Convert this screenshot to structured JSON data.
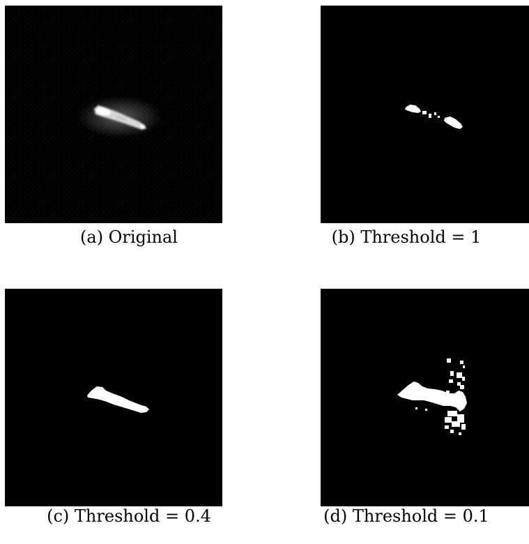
{
  "figure": {
    "panels": [
      {
        "id": "a",
        "caption": "(a) Original"
      },
      {
        "id": "b",
        "caption": "(b) Threshold = 1"
      },
      {
        "id": "c",
        "caption": "(c) Threshold = 0.4"
      },
      {
        "id": "d",
        "caption": "(d) Threshold = 0.1"
      }
    ]
  },
  "colors": {
    "background": "#000000",
    "foreground": "#ffffff"
  }
}
